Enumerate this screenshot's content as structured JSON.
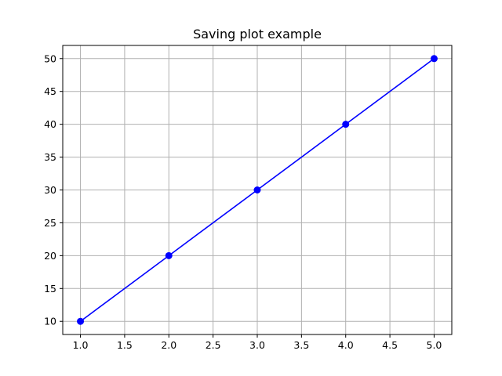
{
  "chart_data": {
    "type": "line",
    "title": "Saving plot example",
    "xlabel": "",
    "ylabel": "",
    "x": [
      1,
      2,
      3,
      4,
      5
    ],
    "series": [
      {
        "values": [
          10,
          20,
          30,
          40,
          50
        ],
        "color": "#0000ff",
        "marker": "circle"
      }
    ],
    "xlim": [
      0.8,
      5.2
    ],
    "ylim": [
      8,
      52
    ],
    "xticks": [
      1.0,
      1.5,
      2.0,
      2.5,
      3.0,
      3.5,
      4.0,
      4.5,
      5.0
    ],
    "xtick_labels": [
      "1.0",
      "1.5",
      "2.0",
      "2.5",
      "3.0",
      "3.5",
      "4.0",
      "4.5",
      "5.0"
    ],
    "yticks": [
      10,
      15,
      20,
      25,
      30,
      35,
      40,
      45,
      50
    ],
    "ytick_labels": [
      "10",
      "15",
      "20",
      "25",
      "30",
      "35",
      "40",
      "45",
      "50"
    ],
    "grid": true,
    "grid_color": "#b0b0b0"
  }
}
